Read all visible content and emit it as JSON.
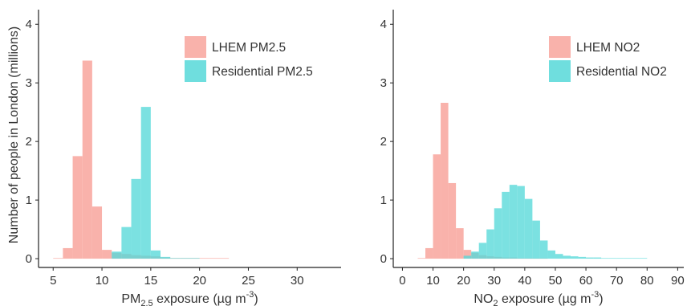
{
  "ylabel": "Number of people in London (millions)",
  "colors": {
    "lhem": "#f8a49c",
    "residential": "#56d8d8",
    "axis": "#222222",
    "tick_text": "#333333"
  },
  "chart_data": [
    {
      "type": "bar",
      "histogram": true,
      "xlabel": {
        "base": "PM",
        "sub": "2.5",
        "rest": " exposure (µg m",
        "sup": "-3",
        "close": ")"
      },
      "xlim": [
        3.5,
        34.5
      ],
      "ylim": [
        -0.15,
        4.25
      ],
      "xticks": [
        5,
        10,
        15,
        20,
        25,
        30
      ],
      "yticks": [
        0,
        1,
        2,
        3,
        4
      ],
      "legend": {
        "position": "top-right"
      },
      "bin_width": 1,
      "series": [
        {
          "name": "LHEM PM2.5",
          "color_key": "lhem",
          "bins": [
            [
              5,
              0.01
            ],
            [
              6,
              0.18
            ],
            [
              7,
              1.75
            ],
            [
              8,
              3.38
            ],
            [
              9,
              0.89
            ],
            [
              10,
              0.15
            ],
            [
              11,
              0.1
            ],
            [
              12,
              0.08
            ],
            [
              13,
              0.06
            ],
            [
              14,
              0.05
            ],
            [
              15,
              0.04
            ],
            [
              16,
              0.02
            ],
            [
              17,
              0.01
            ],
            [
              18,
              0.01
            ],
            [
              19,
              0.01
            ],
            [
              20,
              0.01
            ],
            [
              21,
              0.01
            ],
            [
              22,
              0.01
            ]
          ]
        },
        {
          "name": "Residential PM2.5",
          "color_key": "residential",
          "bins": [
            [
              11,
              0.12
            ],
            [
              12,
              0.54
            ],
            [
              13,
              1.36
            ],
            [
              14,
              2.59
            ],
            [
              15,
              0.14
            ],
            [
              16,
              0.03
            ],
            [
              17,
              0.01
            ],
            [
              18,
              0.01
            ],
            [
              19,
              0.01
            ]
          ]
        }
      ]
    },
    {
      "type": "bar",
      "histogram": true,
      "xlabel": {
        "base": "NO",
        "sub": "2",
        "rest": " exposure (µg m",
        "sup": "-3",
        "close": ")"
      },
      "xlim": [
        -3,
        92
      ],
      "ylim": [
        -0.15,
        4.25
      ],
      "xticks": [
        0,
        10,
        20,
        30,
        40,
        50,
        60,
        70,
        80,
        90
      ],
      "yticks": [
        0,
        1,
        2,
        3,
        4
      ],
      "legend": {
        "position": "top-right"
      },
      "bin_width": 2.5,
      "series": [
        {
          "name": "LHEM NO2",
          "color_key": "lhem",
          "bins": [
            [
              5,
              0.01
            ],
            [
              7.5,
              0.18
            ],
            [
              10,
              1.78
            ],
            [
              12.5,
              2.66
            ],
            [
              15,
              1.29
            ],
            [
              17.5,
              0.52
            ],
            [
              20,
              0.15
            ],
            [
              22.5,
              0.1
            ],
            [
              25,
              0.06
            ],
            [
              27.5,
              0.04
            ],
            [
              30,
              0.03
            ],
            [
              32.5,
              0.02
            ],
            [
              35,
              0.02
            ],
            [
              37.5,
              0.01
            ],
            [
              40,
              0.01
            ],
            [
              42.5,
              0.01
            ],
            [
              45,
              0.01
            ]
          ]
        },
        {
          "name": "Residential NO2",
          "color_key": "residential",
          "bins": [
            [
              20,
              0.05
            ],
            [
              22.5,
              0.12
            ],
            [
              25,
              0.27
            ],
            [
              27.5,
              0.5
            ],
            [
              30,
              0.86
            ],
            [
              32.5,
              1.14
            ],
            [
              35,
              1.26
            ],
            [
              37.5,
              1.24
            ],
            [
              40,
              1.02
            ],
            [
              42.5,
              0.65
            ],
            [
              45,
              0.31
            ],
            [
              47.5,
              0.14
            ],
            [
              50,
              0.08
            ],
            [
              52.5,
              0.05
            ],
            [
              55,
              0.04
            ],
            [
              57.5,
              0.03
            ],
            [
              60,
              0.02
            ],
            [
              62.5,
              0.02
            ],
            [
              65,
              0.01
            ],
            [
              67.5,
              0.01
            ],
            [
              70,
              0.01
            ],
            [
              72.5,
              0.01
            ],
            [
              75,
              0.01
            ],
            [
              77.5,
              0.01
            ]
          ]
        }
      ]
    }
  ]
}
